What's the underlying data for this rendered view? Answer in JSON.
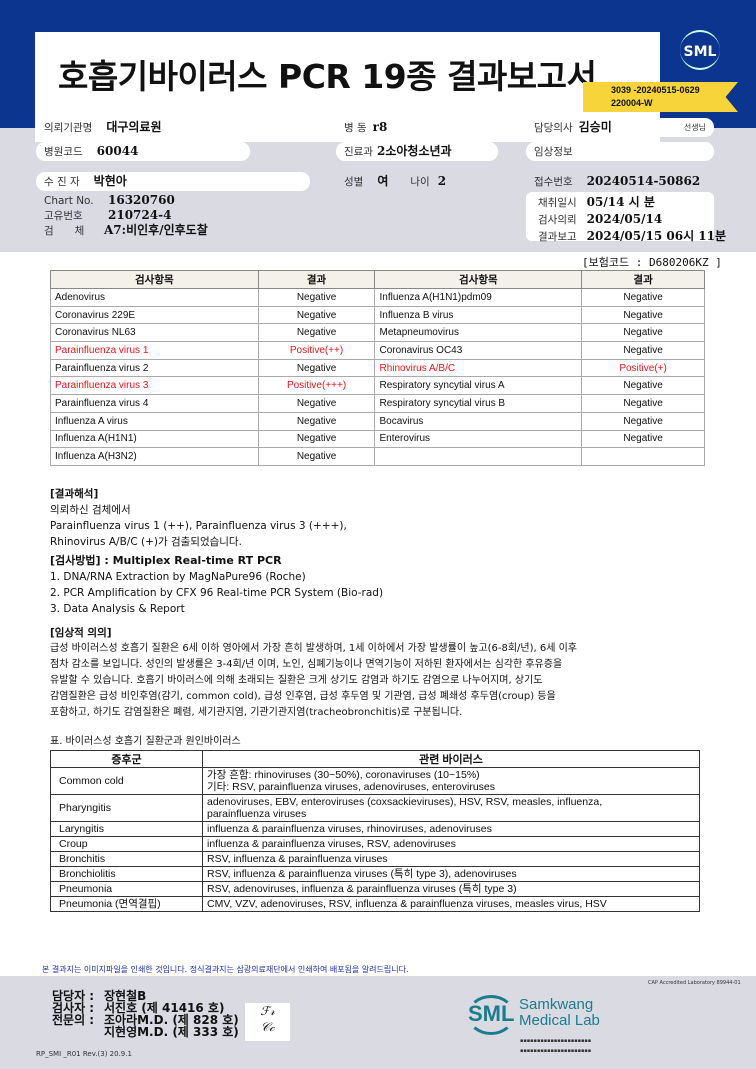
{
  "header": {
    "title": "호흡기바이러스 PCR 19종 결과보고서",
    "logo": "SML",
    "ribbon_line1": "3039 -20240515-0629",
    "ribbon_line2": "220004-W"
  },
  "patient": {
    "institution_label": "의뢰기관명",
    "institution": "대구의료원",
    "ward_label": "병 동",
    "ward": "r8",
    "doctor_label": "담당의사",
    "doctor": "김승미",
    "doctor_suffix": "선생님",
    "hospital_code_label": "병원코드",
    "hospital_code": "60044",
    "department_label": "진료과",
    "department": "2소아청소년과",
    "clinical_info_label": "임상정보",
    "patient_label": "수 진 자",
    "patient": "박현아",
    "sex_label": "성별",
    "sex": "여",
    "age_label": "나이",
    "age": "2",
    "receipt_label": "접수번호",
    "receipt": "20240514-50862",
    "chart_label": "Chart No.",
    "chart": "16320760",
    "id_label": "고유번호",
    "id": "210724-4",
    "specimen_label": "검　　체",
    "specimen": "A7:비인후/인후도찰",
    "collected_label": "채취일시",
    "collected": "05/14 시 분",
    "requested_label": "검사의뢰",
    "requested": "2024/05/14",
    "reported_label": "결과보고",
    "reported": "2024/05/15  06시 11분"
  },
  "insurance_code": "[보험코드 : D680206KZ ]",
  "results": {
    "headers": [
      "검사항목",
      "결과",
      "검사항목",
      "결과"
    ],
    "rows": [
      [
        {
          "name": "Adenovirus",
          "result": "Negative"
        },
        {
          "name": "Influenza A(H1N1)pdm09",
          "result": "Negative"
        }
      ],
      [
        {
          "name": "Coronavirus 229E",
          "result": "Negative"
        },
        {
          "name": "Influenza B virus",
          "result": "Negative"
        }
      ],
      [
        {
          "name": "Coronavirus NL63",
          "result": "Negative"
        },
        {
          "name": "Metapneumovirus",
          "result": "Negative"
        }
      ],
      [
        {
          "name": "Parainfluenza virus 1",
          "result": "Positive(++)",
          "positive": true
        },
        {
          "name": "Coronavirus OC43",
          "result": "Negative"
        }
      ],
      [
        {
          "name": "Parainfluenza virus 2",
          "result": "Negative"
        },
        {
          "name": "Rhinovirus A/B/C",
          "result": "Positive(+)",
          "positive": true
        }
      ],
      [
        {
          "name": "Parainfluenza virus 3",
          "result": "Positive(+++)",
          "positive": true
        },
        {
          "name": "Respiratory syncytial virus A",
          "result": "Negative"
        }
      ],
      [
        {
          "name": "Parainfluenza virus 4",
          "result": "Negative"
        },
        {
          "name": "Respiratory syncytial virus B",
          "result": "Negative"
        }
      ],
      [
        {
          "name": "Influenza A virus",
          "result": "Negative"
        },
        {
          "name": "Bocavirus",
          "result": "Negative"
        }
      ],
      [
        {
          "name": "Influenza A(H1N1)",
          "result": "Negative"
        },
        {
          "name": "Enterovirus",
          "result": "Negative"
        }
      ],
      [
        {
          "name": "Influenza A(H3N2)",
          "result": "Negative"
        },
        {
          "name": "",
          "result": ""
        }
      ]
    ],
    "positive_color": "#e0161c"
  },
  "interpretation": {
    "heading": "[결과해석]",
    "lines": [
      "의뢰하신 검체에서",
      "Parainfluenza virus 1 (++), Parainfluenza virus 3 (+++),",
      "Rhinovirus A/B/C (+)가 검출되었습니다."
    ]
  },
  "method": {
    "heading": "[검사방법] : Multiplex Real-time RT PCR",
    "lines": [
      "1. DNA/RNA Extraction by MagNaPure96 (Roche)",
      "2. PCR Amplification by CFX 96 Real-time PCR System (Bio-rad)",
      "3. Data Analysis & Report"
    ]
  },
  "significance": {
    "heading": "[임상적 의의]",
    "lines": [
      "급성 바이러스성 호흡기 질환은 6세 이하 영아에서 가장 흔히 발생하며, 1세 이하에서 가장 발생률이 높고(6-8회/년), 6세 이후",
      "점차 감소를 보입니다. 성인의 발생률은 3-4회/년 이며, 노인, 심폐기능이나 면역기능이 저하된 환자에서는 심각한 후유증을",
      "유발할 수 있습니다. 호흡기 바이러스에 의해 초래되는 질환은 크게 상기도 감염과 하기도 감염으로 나누어지며, 상기도",
      "감염질환은 급성 비인후염(감기, common cold), 급성 인후염, 급성 후두염 및 기관염, 급성 폐쇄성 후두염(croup) 등을",
      "포함하고, 하기도 감염질환은 폐렴, 세기관지염, 기관기관지염(tracheobronchitis)로 구분됩니다."
    ]
  },
  "syndrome_table": {
    "caption": "표. 바이러스성 호흡기 질환군과 원인바이러스",
    "headers": [
      "증후군",
      "관련 바이러스"
    ],
    "rows": [
      {
        "syndrome": "Common cold",
        "viruses": "가장 흔함: rhinoviruses (30~50%), coronaviruses (10~15%)\n기타: RSV, parainfluenza viruses, adenoviruses, enteroviruses"
      },
      {
        "syndrome": "Pharyngitis",
        "viruses": "adenoviruses, EBV, enteroviruses (coxsackieviruses), HSV, RSV, measles, influenza,\nparainfluenza viruses"
      },
      {
        "syndrome": "Laryngitis",
        "viruses": "influenza & parainfluenza viruses, rhinoviruses, adenoviruses"
      },
      {
        "syndrome": "Croup",
        "viruses": "influenza & parainfluenza viruses, RSV, adenoviruses"
      },
      {
        "syndrome": "Bronchitis",
        "viruses": "RSV, influenza & parainfluenza viruses"
      },
      {
        "syndrome": "Bronchiolitis",
        "viruses": "RSV, influenza & parainfluenza viruses (특히 type 3), adenoviruses"
      },
      {
        "syndrome": "Pneumonia",
        "viruses": "RSV, adenoviruses, influenza & parainfluenza viruses (특히 type 3)"
      },
      {
        "syndrome": "Pneumonia (면역결핍)",
        "viruses": "CMV, VZV, adenoviruses, RSV, influenza & parainfluenza viruses, measles virus, HSV"
      }
    ]
  },
  "footer": {
    "notice": "본 결과지는 이미지파일을 인쇄한 것입니다. 정식결과지는 삼광의료재단에서 인쇄하여 배포됨을 알려드립니다.",
    "cap_note": "CAP Accredited Laboratory 89944-01",
    "staff": [
      {
        "role": "담당자 :",
        "name": "장현철B"
      },
      {
        "role": "검사자 :",
        "name": "서진호 (제 41416 호)"
      },
      {
        "role": "전문의 :",
        "name": "조아라M.D. (제 828 호)"
      },
      {
        "role": "",
        "name": "지현영M.D. (제 333 호)"
      }
    ],
    "lab_name_line1": "Samkwang",
    "lab_name_line2": "Medical Lab",
    "lab_logo": "SML",
    "form_code": "RP_SMI _R01 Rev.(3) 20.9.1",
    "brand_color": "#1a7c8c"
  }
}
